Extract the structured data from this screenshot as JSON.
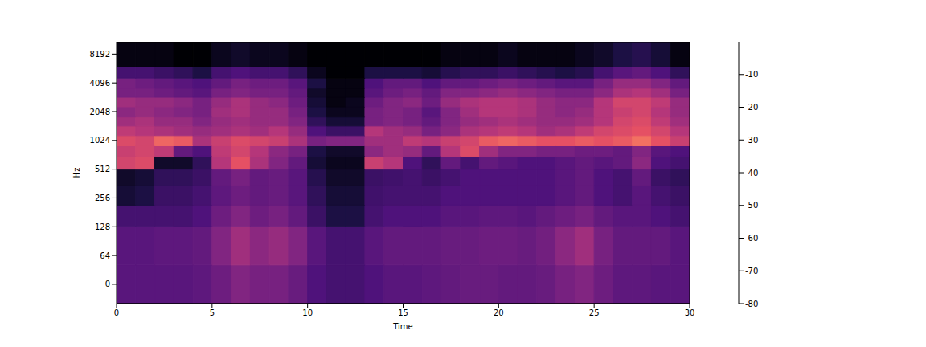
{
  "chart_data": {
    "type": "heatmap",
    "x_label": "Time",
    "y_label": "Hz",
    "log": "y",
    "xlim": [
      0,
      30
    ],
    "xticks": [
      0,
      5,
      10,
      15,
      20,
      25,
      30
    ],
    "ylim": [
      -43,
      11025
    ],
    "yticks": [
      0,
      64,
      128,
      256,
      512,
      1024,
      2048,
      4096,
      8192
    ],
    "x_edges": [
      0,
      1,
      2,
      3,
      4,
      5,
      6,
      7,
      8,
      9,
      10,
      11,
      12,
      13,
      14,
      15,
      16,
      17,
      18,
      19,
      20,
      21,
      22,
      23,
      24,
      25,
      26,
      27,
      28,
      29,
      30
    ],
    "y_edges": [
      -43,
      43,
      129,
      215,
      345,
      512,
      700,
      900,
      1150,
      1450,
      1800,
      2300,
      2900,
      3600,
      4600,
      6000,
      11025
    ],
    "cells": [
      [
        -58,
        -58,
        -58,
        -58,
        -57,
        -54,
        -50,
        -52,
        -52,
        -55,
        -60,
        -62,
        -62,
        -60,
        -58,
        -58,
        -57,
        -56,
        -55,
        -55,
        -56,
        -56,
        -55,
        -52,
        -50,
        -54,
        -57,
        -57,
        -58,
        -58
      ],
      [
        -58,
        -58,
        -57,
        -57,
        -56,
        -50,
        -44,
        -48,
        -46,
        -50,
        -58,
        -62,
        -62,
        -58,
        -56,
        -56,
        -56,
        -55,
        -55,
        -54,
        -54,
        -55,
        -53,
        -48,
        -44,
        -52,
        -56,
        -56,
        -56,
        -58
      ],
      [
        -62,
        -62,
        -62,
        -62,
        -60,
        -54,
        -50,
        -54,
        -52,
        -56,
        -64,
        -70,
        -70,
        -62,
        -60,
        -60,
        -60,
        -58,
        -58,
        -57,
        -57,
        -58,
        -56,
        -54,
        -52,
        -56,
        -58,
        -58,
        -60,
        -62
      ],
      [
        -72,
        -70,
        -64,
        -64,
        -62,
        -57,
        -54,
        -56,
        -55,
        -58,
        -66,
        -72,
        -72,
        -63,
        -62,
        -62,
        -62,
        -60,
        -60,
        -60,
        -60,
        -60,
        -60,
        -58,
        -56,
        -60,
        -62,
        -58,
        -62,
        -64
      ],
      [
        -74,
        -72,
        -66,
        -66,
        -64,
        -56,
        -52,
        -56,
        -55,
        -58,
        -68,
        -74,
        -74,
        -64,
        -63,
        -62,
        -64,
        -62,
        -60,
        -60,
        -60,
        -60,
        -60,
        -58,
        -56,
        -60,
        -62,
        -56,
        -64,
        -66
      ],
      [
        -34,
        -32,
        -74,
        -74,
        -66,
        -40,
        -30,
        -42,
        -50,
        -56,
        -72,
        -76,
        -76,
        -36,
        -40,
        -60,
        -66,
        -56,
        -62,
        -56,
        -58,
        -60,
        -60,
        -58,
        -56,
        -58,
        -56,
        -48,
        -60,
        -62
      ],
      [
        -36,
        -34,
        -38,
        -56,
        -60,
        -38,
        -34,
        -40,
        -48,
        -52,
        -70,
        -74,
        -74,
        -48,
        -44,
        -46,
        -56,
        -40,
        -32,
        -44,
        -50,
        -50,
        -52,
        -52,
        -54,
        -54,
        -56,
        -50,
        -58,
        -60
      ],
      [
        -32,
        -34,
        -26,
        -28,
        -42,
        -36,
        -32,
        -34,
        -36,
        -42,
        -52,
        -50,
        -50,
        -44,
        -44,
        -38,
        -40,
        -36,
        -34,
        -28,
        -26,
        -28,
        -30,
        -30,
        -28,
        -30,
        -28,
        -24,
        -30,
        -36
      ],
      [
        -38,
        -40,
        -42,
        -44,
        -46,
        -44,
        -42,
        -44,
        -40,
        -46,
        -60,
        -64,
        -64,
        -40,
        -44,
        -46,
        -52,
        -48,
        -42,
        -40,
        -38,
        -40,
        -44,
        -42,
        -38,
        -34,
        -32,
        -30,
        -34,
        -40
      ],
      [
        -44,
        -42,
        -46,
        -46,
        -50,
        -46,
        -44,
        -46,
        -46,
        -50,
        -66,
        -72,
        -72,
        -52,
        -50,
        -52,
        -56,
        -50,
        -46,
        -44,
        -42,
        -44,
        -46,
        -46,
        -44,
        -40,
        -34,
        -32,
        -38,
        -44
      ],
      [
        -48,
        -46,
        -48,
        -50,
        -52,
        -44,
        -42,
        -46,
        -46,
        -52,
        -70,
        -76,
        -76,
        -52,
        -50,
        -52,
        -58,
        -50,
        -44,
        -40,
        -40,
        -42,
        -46,
        -48,
        -46,
        -40,
        -36,
        -34,
        -40,
        -46
      ],
      [
        -44,
        -46,
        -46,
        -48,
        -52,
        -46,
        -42,
        -46,
        -48,
        -54,
        -72,
        -78,
        -76,
        -54,
        -50,
        -48,
        -54,
        -46,
        -42,
        -40,
        -40,
        -42,
        -46,
        -48,
        -48,
        -40,
        -34,
        -34,
        -38,
        -46
      ],
      [
        -52,
        -52,
        -54,
        -56,
        -58,
        -52,
        -50,
        -52,
        -52,
        -56,
        -74,
        -78,
        -78,
        -58,
        -54,
        -52,
        -56,
        -50,
        -50,
        -48,
        -46,
        -48,
        -50,
        -52,
        -52,
        -48,
        -42,
        -40,
        -44,
        -52
      ],
      [
        -52,
        -54,
        -56,
        -58,
        -60,
        -56,
        -52,
        -54,
        -54,
        -58,
        -70,
        -78,
        -78,
        -60,
        -56,
        -56,
        -60,
        -56,
        -56,
        -54,
        -52,
        -54,
        -56,
        -58,
        -58,
        -52,
        -46,
        -46,
        -50,
        -56
      ],
      [
        -62,
        -62,
        -64,
        -66,
        -70,
        -62,
        -60,
        -62,
        -62,
        -66,
        -76,
        -80,
        -80,
        -70,
        -70,
        -70,
        -72,
        -68,
        -66,
        -66,
        -64,
        -66,
        -68,
        -70,
        -68,
        -62,
        -58,
        -56,
        -60,
        -66
      ],
      [
        -78,
        -78,
        -78,
        -80,
        -80,
        -76,
        -74,
        -76,
        -76,
        -78,
        -80,
        -80,
        -80,
        -80,
        -80,
        -80,
        -80,
        -78,
        -78,
        -78,
        -76,
        -78,
        -78,
        -78,
        -76,
        -74,
        -70,
        -68,
        -72,
        -78
      ]
    ],
    "colorbar_range": [
      -80,
      0
    ],
    "colorbar_ticks": [
      -10,
      -20,
      -30,
      -40,
      -50,
      -60,
      -70,
      -80
    ]
  }
}
